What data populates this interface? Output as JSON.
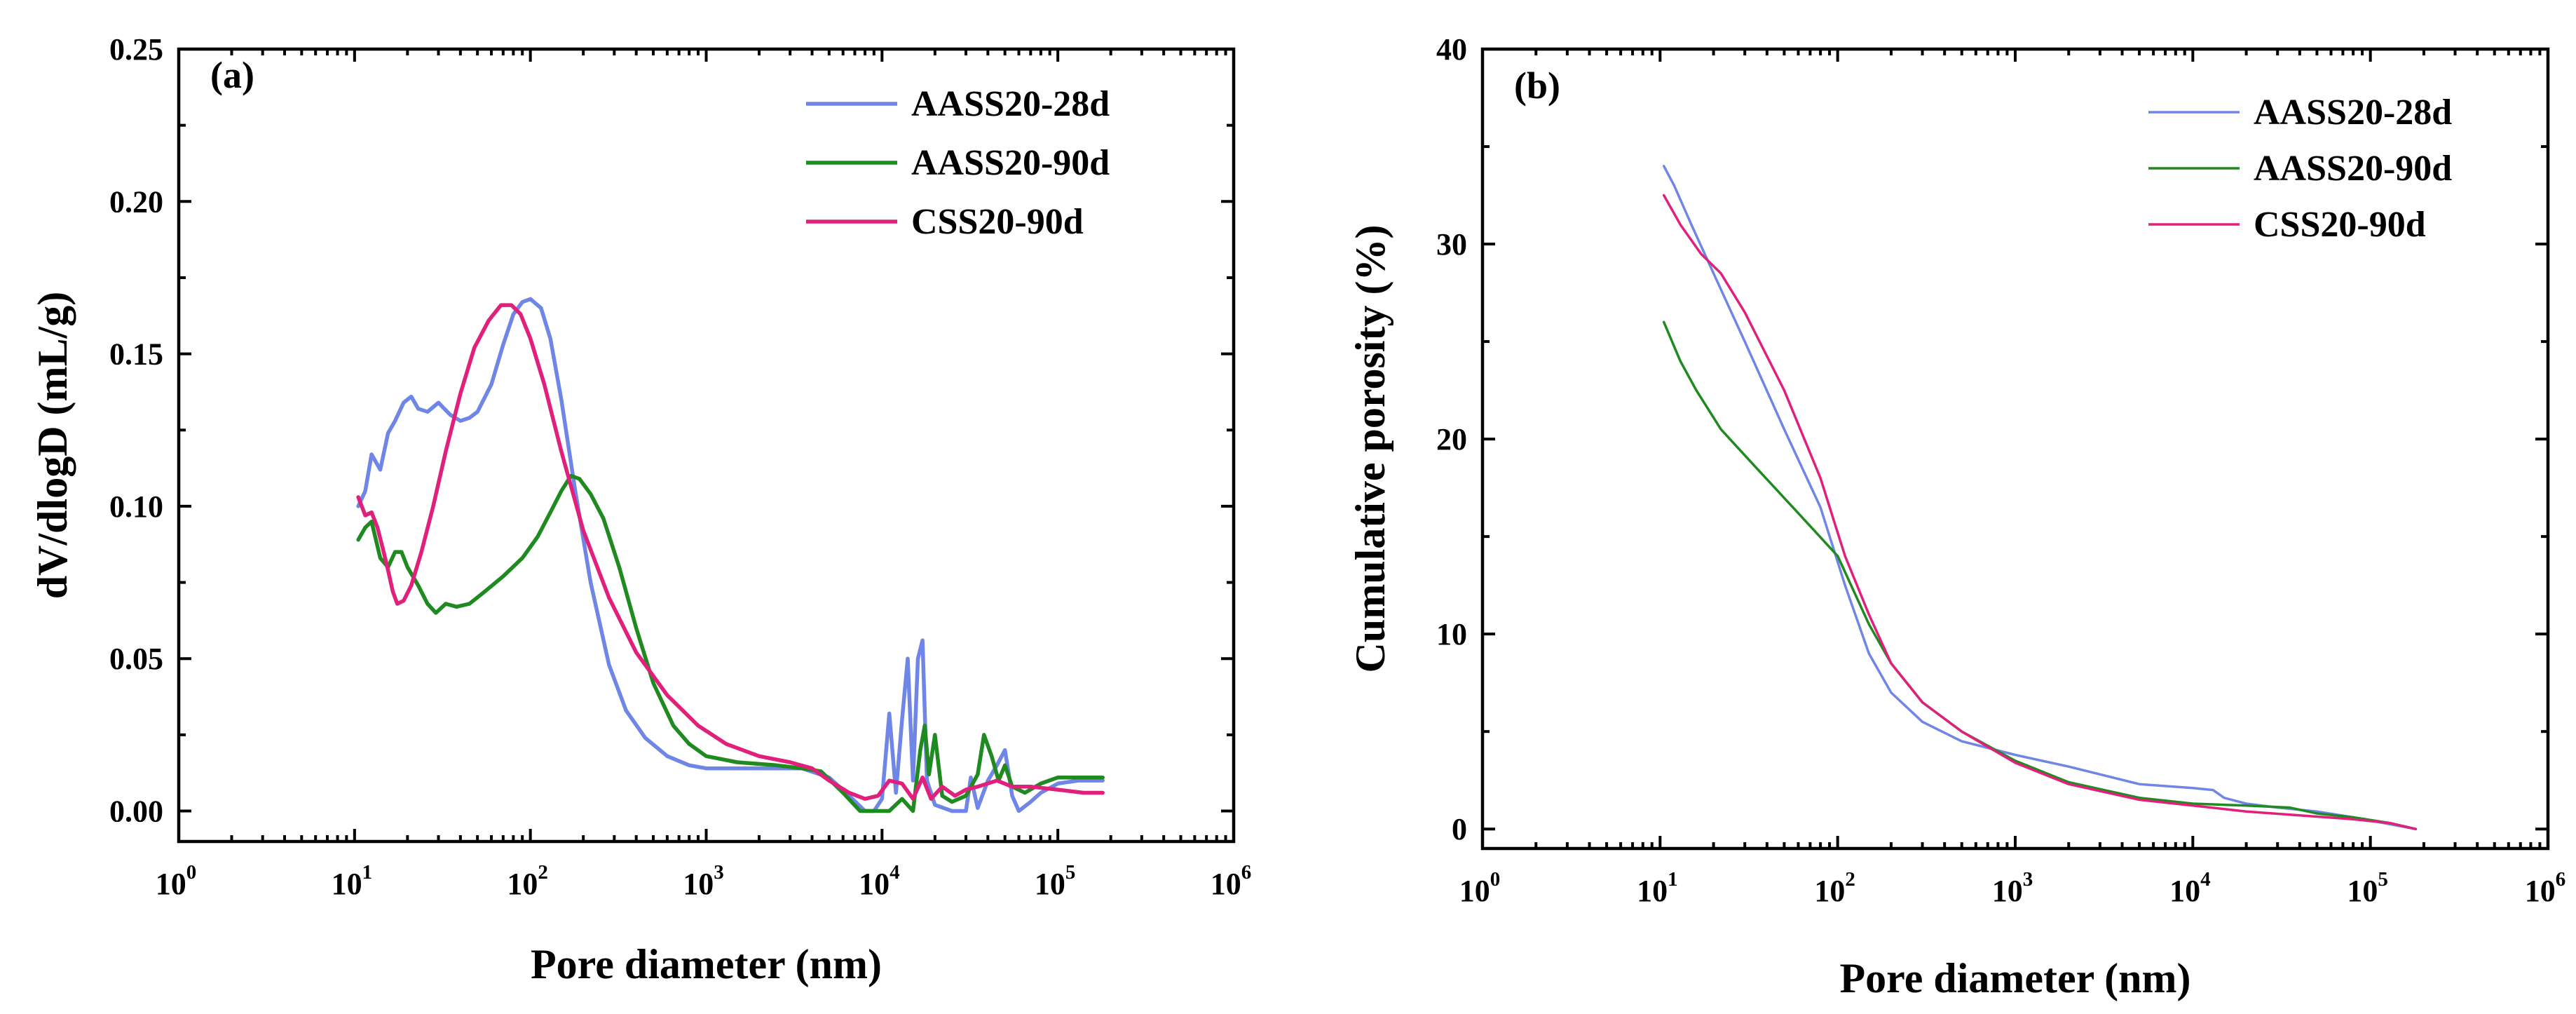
{
  "chart_data": [
    {
      "panel_label": "(a)",
      "type": "line",
      "xlabel": "Pore diameter (nm)",
      "ylabel": "dV/dlogD (mL/g)",
      "x_scale": "log",
      "xlim": [
        1,
        1000000
      ],
      "ylim": [
        -0.01,
        0.25
      ],
      "x_ticks": [
        {
          "base": "10",
          "exp": "0",
          "value": 1
        },
        {
          "base": "10",
          "exp": "1",
          "value": 10
        },
        {
          "base": "10",
          "exp": "2",
          "value": 100
        },
        {
          "base": "10",
          "exp": "3",
          "value": 1000
        },
        {
          "base": "10",
          "exp": "4",
          "value": 10000
        },
        {
          "base": "10",
          "exp": "5",
          "value": 100000
        },
        {
          "base": "10",
          "exp": "6",
          "value": 1000000
        }
      ],
      "y_ticks": [
        {
          "label": "0.00",
          "value": 0.0
        },
        {
          "label": "0.05",
          "value": 0.05
        },
        {
          "label": "0.10",
          "value": 0.1
        },
        {
          "label": "0.15",
          "value": 0.15
        },
        {
          "label": "0.20",
          "value": 0.2
        },
        {
          "label": "0.25",
          "value": 0.25
        }
      ],
      "legend_position": "top-right",
      "grid": false,
      "series": [
        {
          "name": "AASS20-28d",
          "color": "#6f86e6",
          "points": [
            [
              10.5,
              0.1
            ],
            [
              11.5,
              0.105
            ],
            [
              12.5,
              0.117
            ],
            [
              14,
              0.112
            ],
            [
              15.5,
              0.124
            ],
            [
              17,
              0.128
            ],
            [
              19,
              0.134
            ],
            [
              21,
              0.136
            ],
            [
              23,
              0.132
            ],
            [
              26,
              0.131
            ],
            [
              30,
              0.134
            ],
            [
              35,
              0.13
            ],
            [
              40,
              0.128
            ],
            [
              45,
              0.129
            ],
            [
              50,
              0.131
            ],
            [
              60,
              0.14
            ],
            [
              70,
              0.153
            ],
            [
              80,
              0.163
            ],
            [
              90,
              0.167
            ],
            [
              100,
              0.168
            ],
            [
              115,
              0.165
            ],
            [
              130,
              0.155
            ],
            [
              150,
              0.135
            ],
            [
              180,
              0.105
            ],
            [
              220,
              0.075
            ],
            [
              280,
              0.048
            ],
            [
              350,
              0.033
            ],
            [
              450,
              0.024
            ],
            [
              600,
              0.018
            ],
            [
              800,
              0.015
            ],
            [
              1000,
              0.014
            ],
            [
              2000,
              0.014
            ],
            [
              3500,
              0.014
            ],
            [
              5000,
              0.011
            ],
            [
              6500,
              0.005
            ],
            [
              8000,
              0.0
            ],
            [
              9000,
              0.0
            ],
            [
              10000,
              0.004
            ],
            [
              11000,
              0.032
            ],
            [
              12000,
              0.006
            ],
            [
              13000,
              0.03
            ],
            [
              14000,
              0.05
            ],
            [
              15000,
              0.01
            ],
            [
              16000,
              0.05
            ],
            [
              17000,
              0.056
            ],
            [
              18000,
              0.01
            ],
            [
              20000,
              0.002
            ],
            [
              25000,
              0.0
            ],
            [
              30000,
              0.0
            ],
            [
              32000,
              0.011
            ],
            [
              35000,
              0.001
            ],
            [
              40000,
              0.01
            ],
            [
              45000,
              0.015
            ],
            [
              50000,
              0.02
            ],
            [
              55000,
              0.005
            ],
            [
              60000,
              0.0
            ],
            [
              70000,
              0.003
            ],
            [
              80000,
              0.006
            ],
            [
              100000,
              0.009
            ],
            [
              130000,
              0.01
            ],
            [
              180000,
              0.01
            ]
          ]
        },
        {
          "name": "AASS20-90d",
          "color": "#1f8a1f",
          "points": [
            [
              10.5,
              0.089
            ],
            [
              11.5,
              0.093
            ],
            [
              12.5,
              0.095
            ],
            [
              14,
              0.083
            ],
            [
              15.5,
              0.08
            ],
            [
              17,
              0.085
            ],
            [
              18.5,
              0.085
            ],
            [
              20,
              0.08
            ],
            [
              23,
              0.074
            ],
            [
              26,
              0.068
            ],
            [
              29,
              0.065
            ],
            [
              33,
              0.068
            ],
            [
              38,
              0.067
            ],
            [
              45,
              0.068
            ],
            [
              55,
              0.072
            ],
            [
              70,
              0.077
            ],
            [
              90,
              0.083
            ],
            [
              110,
              0.09
            ],
            [
              130,
              0.098
            ],
            [
              150,
              0.105
            ],
            [
              170,
              0.11
            ],
            [
              190,
              0.109
            ],
            [
              220,
              0.104
            ],
            [
              260,
              0.096
            ],
            [
              320,
              0.08
            ],
            [
              400,
              0.06
            ],
            [
              500,
              0.042
            ],
            [
              650,
              0.028
            ],
            [
              800,
              0.022
            ],
            [
              1000,
              0.018
            ],
            [
              1500,
              0.016
            ],
            [
              2500,
              0.015
            ],
            [
              3500,
              0.014
            ],
            [
              4500,
              0.013
            ],
            [
              6000,
              0.006
            ],
            [
              7500,
              0.0
            ],
            [
              9000,
              0.0
            ],
            [
              11000,
              0.0
            ],
            [
              13000,
              0.004
            ],
            [
              15000,
              0.0
            ],
            [
              16500,
              0.02
            ],
            [
              17500,
              0.028
            ],
            [
              18500,
              0.012
            ],
            [
              20000,
              0.025
            ],
            [
              22000,
              0.005
            ],
            [
              25000,
              0.003
            ],
            [
              30000,
              0.005
            ],
            [
              35000,
              0.012
            ],
            [
              38000,
              0.025
            ],
            [
              42000,
              0.018
            ],
            [
              46000,
              0.01
            ],
            [
              50000,
              0.015
            ],
            [
              55000,
              0.008
            ],
            [
              65000,
              0.006
            ],
            [
              80000,
              0.009
            ],
            [
              100000,
              0.011
            ],
            [
              130000,
              0.011
            ],
            [
              180000,
              0.011
            ]
          ]
        },
        {
          "name": "CSS20-90d",
          "color": "#e0207a",
          "points": [
            [
              10.5,
              0.103
            ],
            [
              11.5,
              0.097
            ],
            [
              12.5,
              0.098
            ],
            [
              13.5,
              0.093
            ],
            [
              14.5,
              0.086
            ],
            [
              15.5,
              0.079
            ],
            [
              16.5,
              0.072
            ],
            [
              17.5,
              0.068
            ],
            [
              19,
              0.069
            ],
            [
              21,
              0.074
            ],
            [
              24,
              0.085
            ],
            [
              28,
              0.1
            ],
            [
              33,
              0.118
            ],
            [
              40,
              0.137
            ],
            [
              48,
              0.152
            ],
            [
              58,
              0.161
            ],
            [
              68,
              0.166
            ],
            [
              78,
              0.166
            ],
            [
              88,
              0.163
            ],
            [
              100,
              0.155
            ],
            [
              120,
              0.14
            ],
            [
              150,
              0.118
            ],
            [
              200,
              0.092
            ],
            [
              280,
              0.07
            ],
            [
              400,
              0.052
            ],
            [
              600,
              0.038
            ],
            [
              900,
              0.028
            ],
            [
              1300,
              0.022
            ],
            [
              2000,
              0.018
            ],
            [
              3000,
              0.016
            ],
            [
              4000,
              0.014
            ],
            [
              5000,
              0.01
            ],
            [
              6500,
              0.006
            ],
            [
              8000,
              0.004
            ],
            [
              9500,
              0.005
            ],
            [
              11000,
              0.01
            ],
            [
              13000,
              0.009
            ],
            [
              15000,
              0.004
            ],
            [
              17000,
              0.011
            ],
            [
              19000,
              0.004
            ],
            [
              22000,
              0.008
            ],
            [
              26000,
              0.005
            ],
            [
              30000,
              0.007
            ],
            [
              35000,
              0.008
            ],
            [
              45000,
              0.01
            ],
            [
              55000,
              0.008
            ],
            [
              70000,
              0.008
            ],
            [
              100000,
              0.007
            ],
            [
              140000,
              0.006
            ],
            [
              180000,
              0.006
            ]
          ]
        }
      ]
    },
    {
      "panel_label": "(b)",
      "type": "line",
      "xlabel": "Pore diameter (nm)",
      "ylabel": "Cumulative porosity (%)",
      "x_scale": "log",
      "xlim": [
        1,
        1000000
      ],
      "ylim": [
        -1,
        40
      ],
      "x_ticks": [
        {
          "base": "10",
          "exp": "0",
          "value": 1
        },
        {
          "base": "10",
          "exp": "1",
          "value": 10
        },
        {
          "base": "10",
          "exp": "2",
          "value": 100
        },
        {
          "base": "10",
          "exp": "3",
          "value": 1000
        },
        {
          "base": "10",
          "exp": "4",
          "value": 10000
        },
        {
          "base": "10",
          "exp": "5",
          "value": 100000
        },
        {
          "base": "10",
          "exp": "6",
          "value": 1000000
        }
      ],
      "y_ticks": [
        {
          "label": "0",
          "value": 0
        },
        {
          "label": "10",
          "value": 10
        },
        {
          "label": "20",
          "value": 20
        },
        {
          "label": "30",
          "value": 30
        },
        {
          "label": "40",
          "value": 40
        }
      ],
      "legend_position": "top-right",
      "grid": false,
      "series": [
        {
          "name": "AASS20-28d",
          "color": "#6f86e6",
          "points": [
            [
              10.5,
              34
            ],
            [
              12,
              33
            ],
            [
              15,
              31
            ],
            [
              20,
              28.5
            ],
            [
              30,
              25
            ],
            [
              50,
              20.5
            ],
            [
              80,
              16.5
            ],
            [
              110,
              12.5
            ],
            [
              150,
              9
            ],
            [
              200,
              7
            ],
            [
              300,
              5.5
            ],
            [
              500,
              4.5
            ],
            [
              1000,
              3.8
            ],
            [
              2000,
              3.2
            ],
            [
              5000,
              2.3
            ],
            [
              10000,
              2.1
            ],
            [
              13000,
              2.0
            ],
            [
              15000,
              1.6
            ],
            [
              20000,
              1.3
            ],
            [
              30000,
              1.1
            ],
            [
              50000,
              0.9
            ],
            [
              80000,
              0.6
            ],
            [
              120000,
              0.3
            ],
            [
              180000,
              0.0
            ]
          ]
        },
        {
          "name": "AASS20-90d",
          "color": "#1f8a1f",
          "points": [
            [
              10.5,
              26
            ],
            [
              13,
              24
            ],
            [
              16,
              22.5
            ],
            [
              22,
              20.5
            ],
            [
              35,
              18.5
            ],
            [
              60,
              16.2
            ],
            [
              100,
              14
            ],
            [
              150,
              10.5
            ],
            [
              200,
              8.5
            ],
            [
              300,
              6.5
            ],
            [
              500,
              5
            ],
            [
              1000,
              3.5
            ],
            [
              2000,
              2.4
            ],
            [
              5000,
              1.6
            ],
            [
              10000,
              1.3
            ],
            [
              20000,
              1.2
            ],
            [
              35000,
              1.1
            ],
            [
              50000,
              0.8
            ],
            [
              80000,
              0.6
            ],
            [
              130000,
              0.3
            ],
            [
              180000,
              0.0
            ]
          ]
        },
        {
          "name": "CSS20-90d",
          "color": "#e0207a",
          "points": [
            [
              10.5,
              32.5
            ],
            [
              13,
              31
            ],
            [
              17,
              29.5
            ],
            [
              22,
              28.5
            ],
            [
              30,
              26.5
            ],
            [
              50,
              22.5
            ],
            [
              80,
              18
            ],
            [
              110,
              14
            ],
            [
              150,
              11
            ],
            [
              200,
              8.5
            ],
            [
              300,
              6.5
            ],
            [
              500,
              5
            ],
            [
              1000,
              3.4
            ],
            [
              2000,
              2.3
            ],
            [
              5000,
              1.5
            ],
            [
              10000,
              1.2
            ],
            [
              20000,
              0.9
            ],
            [
              40000,
              0.7
            ],
            [
              80000,
              0.5
            ],
            [
              130000,
              0.3
            ],
            [
              180000,
              0.0
            ]
          ]
        }
      ]
    }
  ]
}
